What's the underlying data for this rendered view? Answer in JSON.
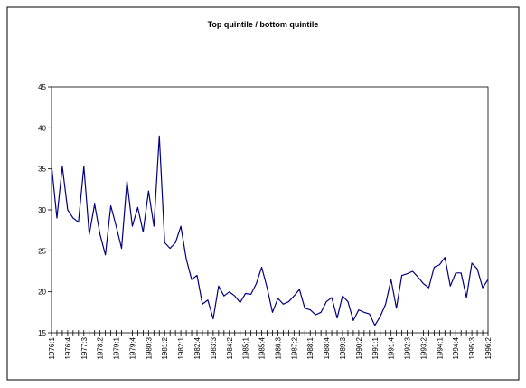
{
  "chart_data": {
    "type": "line",
    "title": "Top quintile / bottom quintile",
    "categories": [
      "1976:1",
      null,
      null,
      "1976:4",
      null,
      null,
      "1977:3",
      null,
      null,
      "1978:2",
      null,
      null,
      "1979:1",
      null,
      null,
      "1979:4",
      null,
      null,
      "1980:3",
      null,
      null,
      "1981:2",
      null,
      null,
      "1982:1",
      null,
      null,
      "1982:4",
      null,
      null,
      "1983:3",
      null,
      null,
      "1984:2",
      null,
      null,
      "1985:1",
      null,
      null,
      "1985:4",
      null,
      null,
      "1986:3",
      null,
      null,
      "1987:2",
      null,
      null,
      "1988:1",
      null,
      null,
      "1988:4",
      null,
      null,
      "1989:3",
      null,
      null,
      "1990:2",
      null,
      null,
      "1991:1",
      null,
      null,
      "1991:4",
      null,
      null,
      "1992:3",
      null,
      null,
      "1993:2",
      null,
      null,
      "1994:1",
      null,
      null,
      "1994:4",
      null,
      null,
      "1995:3",
      null,
      null,
      "1996:2"
    ],
    "series": [
      {
        "color": "#000080",
        "values": [
          35.5,
          29,
          35.3,
          30,
          29,
          28.5,
          35.3,
          27,
          30.7,
          27,
          24.5,
          30.5,
          28,
          25.3,
          33.5,
          28,
          30.3,
          27.3,
          32.3,
          28,
          39,
          26,
          25.3,
          26,
          28,
          24,
          21.5,
          22,
          18.5,
          19,
          16.7,
          20.7,
          19.5,
          20,
          19.5,
          18.7,
          19.8,
          19.7,
          21,
          23,
          20.5,
          17.5,
          19.2,
          18.5,
          18.8,
          19.5,
          20.3,
          18,
          17.8,
          17.2,
          17.5,
          18.8,
          19.3,
          16.8,
          19.5,
          18.8,
          16.5,
          17.8,
          17.5,
          17.3,
          15.9,
          17,
          18.5,
          21.5,
          18,
          22,
          22.2,
          22.5,
          21.8,
          21,
          20.5,
          23,
          23.3,
          24.2,
          20.7,
          22.3,
          22.3,
          19.3,
          23.5,
          22.8,
          20.5,
          21.5
        ]
      }
    ],
    "ylim": [
      15,
      45
    ],
    "yticks": [
      15,
      20,
      25,
      30,
      35,
      40,
      45
    ],
    "grid": false
  }
}
